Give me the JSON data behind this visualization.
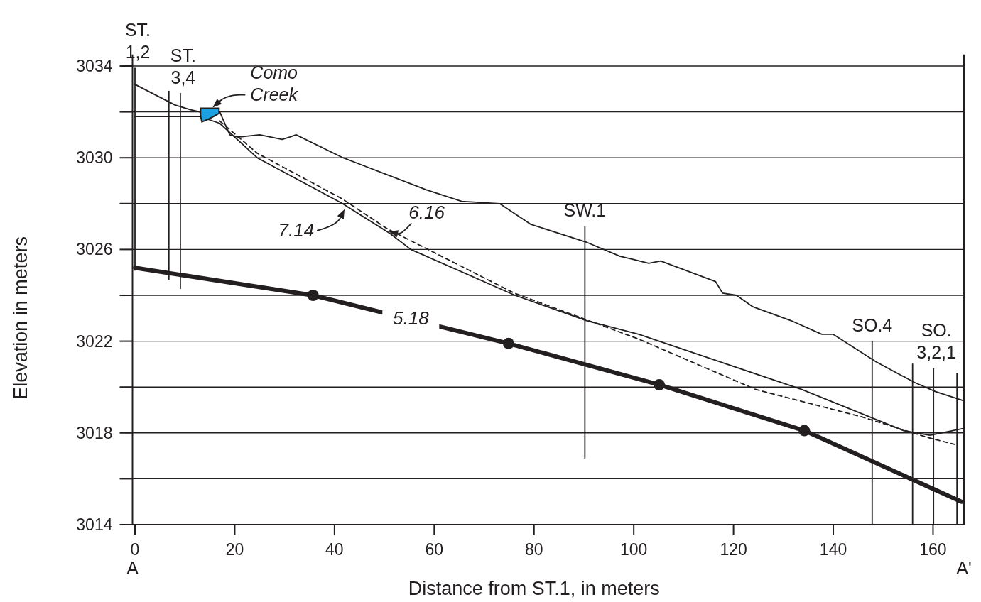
{
  "chart_data": {
    "type": "line",
    "xlabel": "Distance from ST.1, in meters",
    "ylabel": "Elevation in meters",
    "xlim": [
      -0.5,
      166.2
    ],
    "ylim": [
      3014,
      3034.5
    ],
    "xticks": [
      0,
      20,
      40,
      60,
      80,
      100,
      120,
      140,
      160
    ],
    "yticks": [
      3014,
      {
        "value": 3016,
        "label": null
      },
      3018,
      {
        "value": 3020,
        "label": null
      },
      3022,
      {
        "value": 3024,
        "label": null
      },
      3026,
      {
        "value": 3028,
        "label": null
      },
      3030,
      {
        "value": 3032,
        "label": null
      },
      3034
    ],
    "grid": "y",
    "series": [
      {
        "color": "#231f20",
        "x": [
          0,
          8,
          11,
          13,
          17,
          19,
          20.7,
          25,
          29.5,
          31,
          32.3,
          41.7,
          51.3,
          58.4,
          65.5,
          73.1,
          79.3,
          90.7,
          97.3,
          99.3,
          103,
          105.4,
          116.4,
          117.8,
          120.6,
          123.9,
          131.5,
          137.7,
          140,
          148.6,
          156.3,
          160.5,
          166.2
        ],
        "values": [
          3033.2,
          3032.3,
          3032.1,
          3032.0,
          3032.0,
          3031.0,
          3030.9,
          3031.0,
          3030.8,
          3030.9,
          3031.0,
          3030.0,
          3029.2,
          3028.6,
          3028.1,
          3028.0,
          3027.1,
          3026.3,
          3025.7,
          3025.6,
          3025.4,
          3025.5,
          3024.6,
          3024.1,
          3024.0,
          3023.5,
          3022.9,
          3022.3,
          3022.3,
          3021.1,
          3020.2,
          3019.8,
          3019.4
        ]
      },
      {
        "color": "#231f20",
        "x": [
          0,
          11,
          13,
          17,
          24.5,
          41.6,
          51.1,
          55.3,
          76.2,
          90.5,
          101,
          133.6,
          148.4,
          154.1,
          159.4,
          166.2
        ],
        "values": [
          3031.8,
          3031.8,
          3031.8,
          3031.5,
          3030.0,
          3028.0,
          3026.7,
          3026.0,
          3024.0,
          3022.9,
          3022.3,
          3019.9,
          3018.6,
          3018.1,
          3017.9,
          3018.2
        ]
      },
      {
        "color": "#231f20",
        "line_style": "dashed",
        "x": [
          17,
          24.5,
          41.6,
          50.6,
          76,
          100.9,
          124.4,
          145.7,
          158.9,
          164.3
        ],
        "values": [
          3031.6,
          3030.2,
          3028.2,
          3026.9,
          3024.1,
          3022.1,
          3019.9,
          3018.7,
          3017.8,
          3017.5
        ]
      },
      {
        "color": "#231f20",
        "x": [
          0,
          35.7,
          74.9,
          105.1,
          134.2,
          165.7
        ],
        "values": [
          3025.2,
          3024.0,
          3021.9,
          3020.1,
          3018.1,
          3015.0
        ]
      },
      {
        "type": "scatter",
        "marker": "circle",
        "color": "#231f20",
        "x": [
          35.7,
          74.9,
          105.1,
          134.2
        ],
        "values": [
          3024.0,
          3021.9,
          3020.1,
          3018.1
        ]
      },
      {
        "color": "#231f20",
        "x": [
          0,
          0
        ],
        "values": [
          3033.9,
          3025.1
        ]
      },
      {
        "color": "#231f20",
        "x": [
          6.8,
          6.8
        ],
        "values": [
          3032.9,
          3024.7
        ]
      },
      {
        "color": "#231f20",
        "x": [
          9.1,
          9.1
        ],
        "values": [
          3032.8,
          3024.3
        ]
      },
      {
        "color": "#231f20",
        "x": [
          90.2,
          90.2
        ],
        "values": [
          3027.0,
          3016.9
        ]
      },
      {
        "color": "#231f20",
        "x": [
          147.8,
          147.8
        ],
        "values": [
          3022.0,
          3014
        ]
      },
      {
        "color": "#231f20",
        "x": [
          155.9,
          155.9
        ],
        "values": [
          3021.0,
          3014
        ]
      },
      {
        "color": "#231f20",
        "x": [
          160.1,
          160.1
        ],
        "values": [
          3020.8,
          3014
        ]
      },
      {
        "color": "#231f20",
        "x": [
          164.8,
          164.8
        ],
        "values": [
          3020.6,
          3014
        ]
      }
    ],
    "annotations": [
      {
        "text": "ST. 1,2",
        "x": 0,
        "y": 3033.9
      },
      {
        "text": "ST. 3,4",
        "x": 9.1,
        "y": 3032.8
      },
      {
        "text": "SW.1",
        "x": 90.2,
        "y": 3027.0
      },
      {
        "text": "SO.4",
        "x": 147.8,
        "y": 3022.0
      },
      {
        "text": "SO. 3,2,1",
        "x": 160.1,
        "y": 3020.8
      },
      {
        "text": "Como Creek",
        "x": 15,
        "y": 3032.0
      },
      "A",
      "A'",
      {
        "text": "7.14",
        "x": 41.6,
        "y": 3028.0
      },
      {
        "text": "6.16",
        "x": 50.6,
        "y": 3026.9
      },
      {
        "text": "5.18",
        "x": 55.3,
        "y": 3023.0
      }
    ]
  }
}
